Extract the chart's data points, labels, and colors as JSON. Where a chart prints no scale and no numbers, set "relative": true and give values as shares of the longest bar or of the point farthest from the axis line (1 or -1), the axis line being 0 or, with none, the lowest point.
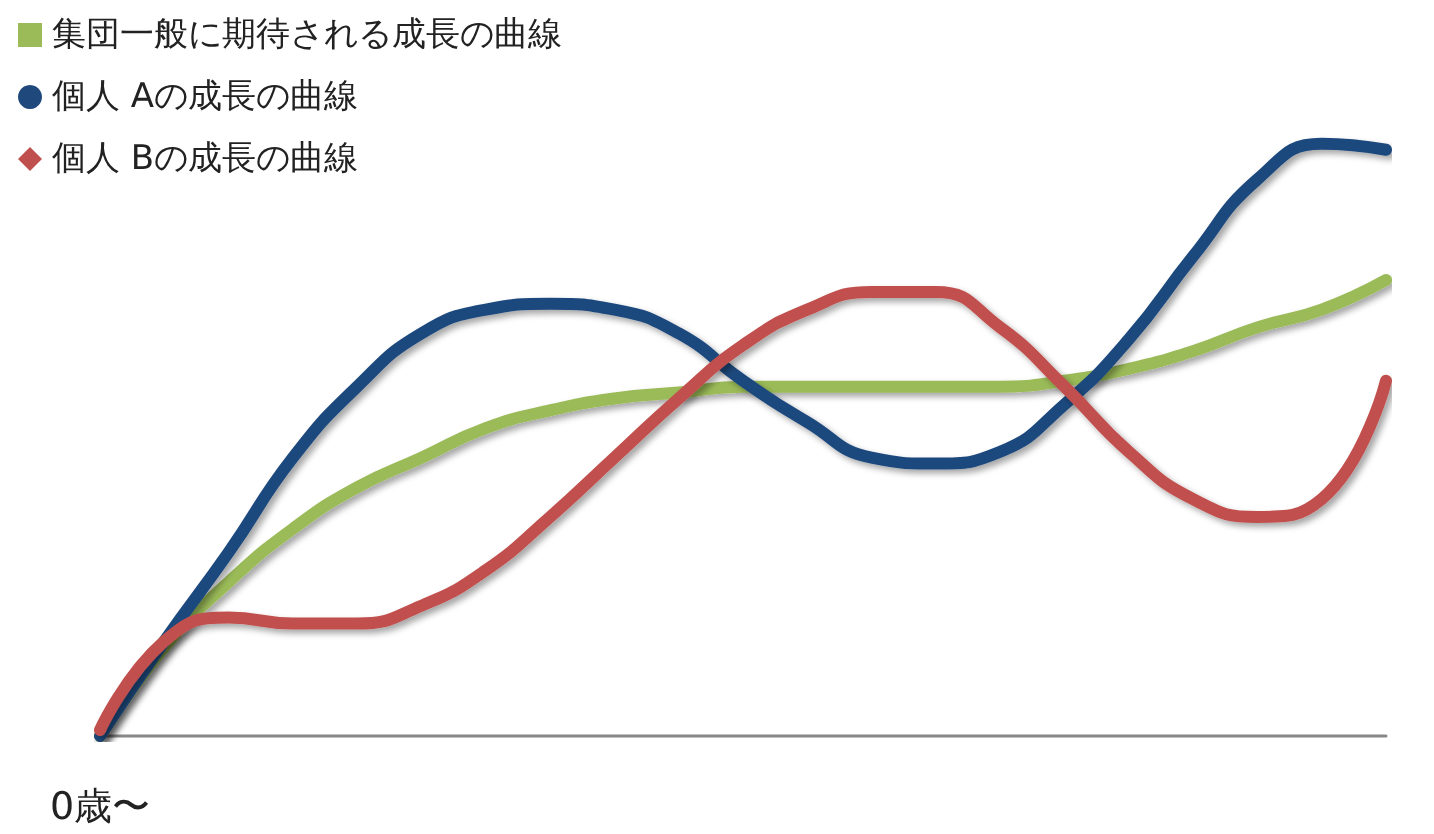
{
  "chart_data": {
    "type": "line",
    "relative": true,
    "legend": "top left",
    "marker": "none",
    "line_style": "solid",
    "grid": false,
    "xlabel": "0歳〜",
    "categories": [
      null,
      null,
      null,
      null,
      null,
      null,
      null,
      null,
      null,
      null,
      null,
      null,
      null,
      null,
      null,
      null,
      null,
      null,
      null,
      null,
      null
    ],
    "series": [
      {
        "name": "集団一般に期待される成長の曲線",
        "color": "#9bbb59",
        "values": [
          0,
          0.15,
          0.26,
          0.35,
          0.42,
          0.47,
          0.52,
          0.55,
          0.57,
          0.58,
          0.59,
          0.59,
          0.59,
          0.59,
          0.59,
          0.6,
          0.62,
          0.65,
          0.69,
          0.72,
          0.77
        ]
      },
      {
        "name": "個人 Aの成長の曲線",
        "color": "#1f497d",
        "values": [
          0,
          0.16,
          0.31,
          0.47,
          0.59,
          0.68,
          0.72,
          0.73,
          0.72,
          0.68,
          0.6,
          0.53,
          0.47,
          0.46,
          0.48,
          0.56,
          0.67,
          0.81,
          0.94,
          1.0,
          0.99
        ]
      },
      {
        "name": "個人 Bの成長の曲線",
        "color": "#c0504d",
        "values": [
          0.01,
          0.16,
          0.2,
          0.19,
          0.19,
          0.22,
          0.28,
          0.37,
          0.47,
          0.57,
          0.66,
          0.72,
          0.75,
          0.75,
          0.69,
          0.59,
          0.48,
          0.4,
          0.37,
          0.4,
          0.6
        ]
      }
    ]
  }
}
